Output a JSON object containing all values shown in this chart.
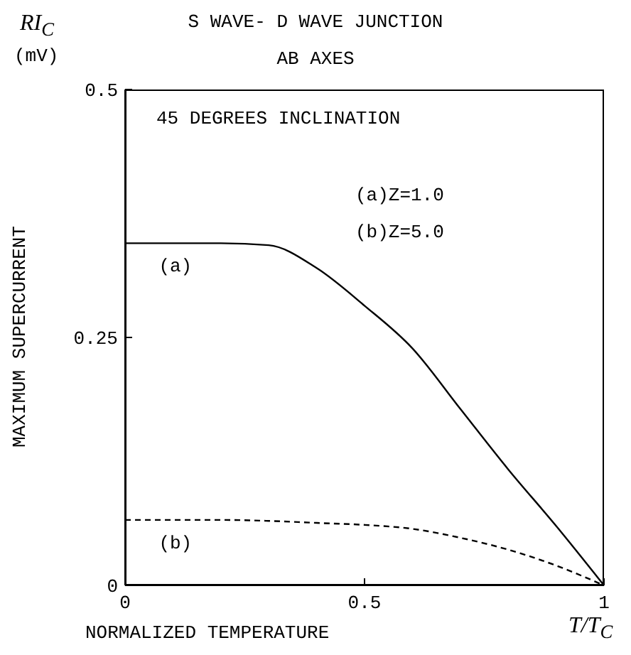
{
  "chart_data": {
    "type": "line",
    "title": "S WAVE- D WAVE JUNCTION",
    "subtitle": "AB AXES",
    "xlabel": "NORMALIZED TEMPERATURE",
    "ylabel": "MAXIMUM SUPERCURRENT",
    "annotations": [
      "45 DEGREES INCLINATION",
      "(a)Z=1.0",
      "(b)Z=5.0",
      "RI$_{C}$",
      "(mV)",
      "T/T$_{C}$"
    ],
    "x": [
      0,
      0.1,
      0.2,
      0.3,
      0.4,
      0.5,
      0.6,
      0.7,
      0.8,
      0.9,
      1
    ],
    "series": [
      {
        "name": "(a)",
        "color": "#000000",
        "line_style": "solid",
        "values": [
          0.345,
          0.345,
          0.345,
          0.343,
          0.32,
          0.282,
          0.239,
          0.178,
          0.117,
          0.06,
          0
        ]
      },
      {
        "name": "(b)",
        "color": "#000000",
        "line_style": "dashed",
        "values": [
          0.066,
          0.066,
          0.066,
          0.065,
          0.063,
          0.061,
          0.057,
          0.048,
          0.036,
          0.02,
          0
        ]
      }
    ],
    "xlim": [
      0,
      1
    ],
    "xticks": [
      0,
      0.5,
      1
    ],
    "ylim": [
      0,
      0.5
    ],
    "yticks": [
      0,
      0.25,
      0.5
    ],
    "marker": "none"
  }
}
